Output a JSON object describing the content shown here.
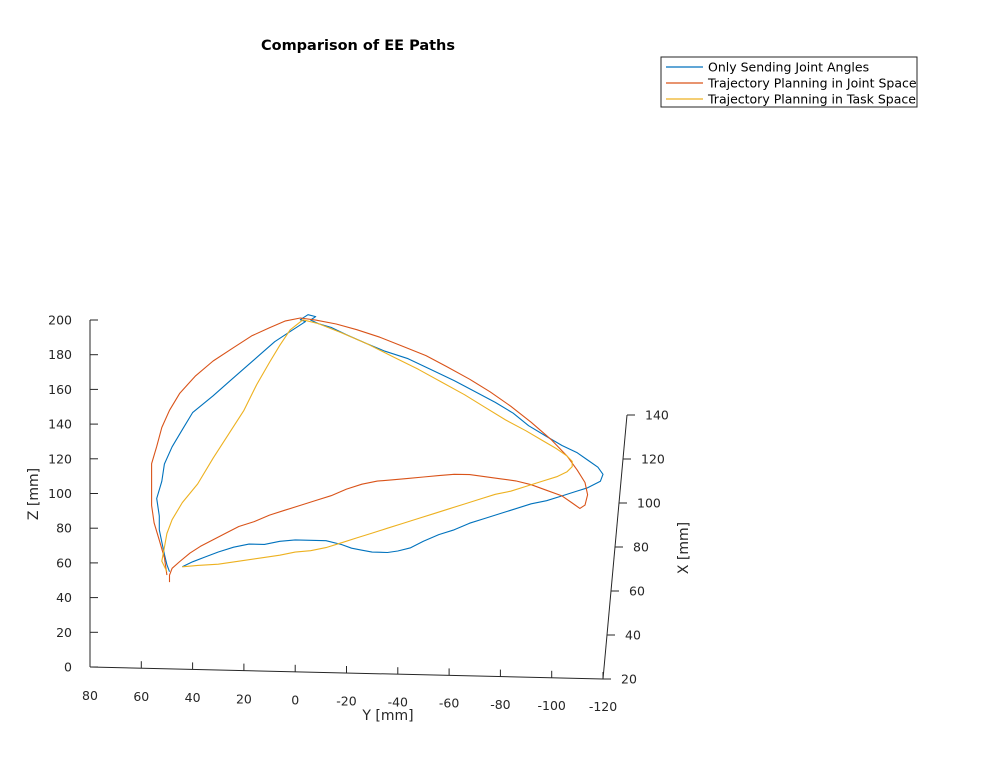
{
  "chart_data": {
    "type": "line3d",
    "title": "Comparison of EE Paths",
    "xlabel": "X [mm]",
    "ylabel": "Y [mm]",
    "zlabel": "Z [mm]",
    "xticks": [
      "20",
      "40",
      "60",
      "80",
      "100",
      "120",
      "140"
    ],
    "yticks": [
      "80",
      "60",
      "40",
      "20",
      "0",
      "-20",
      "-40",
      "-60",
      "-80",
      "-100",
      "-120"
    ],
    "zticks": [
      "0",
      "20",
      "40",
      "60",
      "80",
      "100",
      "120",
      "140",
      "160",
      "180",
      "200"
    ],
    "ylim": [
      80,
      -120
    ],
    "zlim": [
      0,
      200
    ],
    "xlim": [
      20,
      140
    ],
    "legend_position": "top-right",
    "series": [
      {
        "name": "Only Sending Joint Angles",
        "color": "#0072bd",
        "path": [
          [
            44,
            59
          ],
          [
            40,
            62
          ],
          [
            35,
            65
          ],
          [
            30,
            68
          ],
          [
            24,
            71
          ],
          [
            18,
            73
          ],
          [
            12,
            73
          ],
          [
            6,
            75
          ],
          [
            0,
            76
          ],
          [
            -6,
            76
          ],
          [
            -12,
            76
          ],
          [
            -18,
            74
          ],
          [
            -22,
            72
          ],
          [
            -26,
            71
          ],
          [
            -30,
            70
          ],
          [
            -36,
            70
          ],
          [
            -40,
            71
          ],
          [
            -45,
            73
          ],
          [
            -50,
            77
          ],
          [
            -56,
            81
          ],
          [
            -62,
            84
          ],
          [
            -68,
            88
          ],
          [
            -74,
            91
          ],
          [
            -80,
            94
          ],
          [
            -86,
            97
          ],
          [
            -92,
            100
          ],
          [
            -98,
            102
          ],
          [
            -104,
            105
          ],
          [
            -110,
            108
          ],
          [
            -114,
            110
          ],
          [
            -119,
            114
          ],
          [
            -120,
            118
          ],
          [
            -118,
            122
          ],
          [
            -114,
            126
          ],
          [
            -110,
            130
          ],
          [
            -104,
            134
          ],
          [
            -98,
            139
          ],
          [
            -91,
            145
          ],
          [
            -85,
            152
          ],
          [
            -78,
            158
          ],
          [
            -70,
            164
          ],
          [
            -62,
            170
          ],
          [
            -53,
            176
          ],
          [
            -44,
            182
          ],
          [
            -35,
            186
          ],
          [
            -28,
            190
          ],
          [
            -20,
            195
          ],
          [
            -14,
            199
          ],
          [
            -9,
            201
          ],
          [
            -6,
            203
          ],
          [
            -8,
            205
          ],
          [
            -5,
            206
          ],
          [
            -2,
            203
          ],
          [
            -4,
            202
          ],
          [
            2,
            196
          ],
          [
            8,
            190
          ],
          [
            14,
            182
          ],
          [
            20,
            174
          ],
          [
            26,
            166
          ],
          [
            32,
            158
          ],
          [
            40,
            148
          ],
          [
            44,
            138
          ],
          [
            48,
            128
          ],
          [
            51,
            118
          ],
          [
            52,
            108
          ],
          [
            54,
            98
          ],
          [
            53,
            88
          ],
          [
            53,
            80
          ],
          [
            52,
            73
          ],
          [
            51,
            66
          ],
          [
            50,
            60
          ],
          [
            49,
            56
          ]
        ]
      },
      {
        "name": "Trajectory Planning in Joint Space",
        "color": "#d95319",
        "path": [
          [
            49,
            50
          ],
          [
            49,
            54
          ],
          [
            48,
            58
          ],
          [
            45,
            62
          ],
          [
            41,
            67
          ],
          [
            37,
            71
          ],
          [
            32,
            75
          ],
          [
            27,
            79
          ],
          [
            22,
            83
          ],
          [
            16,
            86
          ],
          [
            10,
            90
          ],
          [
            4,
            93
          ],
          [
            -2,
            96
          ],
          [
            -8,
            99
          ],
          [
            -14,
            102
          ],
          [
            -20,
            106
          ],
          [
            -26,
            109
          ],
          [
            -32,
            111
          ],
          [
            -38,
            112
          ],
          [
            -44,
            113
          ],
          [
            -50,
            114
          ],
          [
            -56,
            115
          ],
          [
            -62,
            116
          ],
          [
            -68,
            116
          ],
          [
            -74,
            115
          ],
          [
            -80,
            114
          ],
          [
            -86,
            113
          ],
          [
            -92,
            111
          ],
          [
            -98,
            108
          ],
          [
            -104,
            105
          ],
          [
            -108,
            101
          ],
          [
            -111,
            98
          ],
          [
            -113,
            100
          ],
          [
            -114,
            106
          ],
          [
            -113,
            113
          ],
          [
            -110,
            120
          ],
          [
            -106,
            128
          ],
          [
            -100,
            137
          ],
          [
            -92,
            147
          ],
          [
            -84,
            156
          ],
          [
            -76,
            164
          ],
          [
            -68,
            171
          ],
          [
            -59,
            178
          ],
          [
            -51,
            184
          ],
          [
            -42,
            189
          ],
          [
            -33,
            194
          ],
          [
            -24,
            198
          ],
          [
            -16,
            201
          ],
          [
            -8,
            203
          ],
          [
            -2,
            204
          ],
          [
            4,
            202
          ],
          [
            10,
            198
          ],
          [
            17,
            193
          ],
          [
            24,
            186
          ],
          [
            32,
            178
          ],
          [
            39,
            169
          ],
          [
            45,
            159
          ],
          [
            49,
            149
          ],
          [
            52,
            139
          ],
          [
            54,
            128
          ],
          [
            56,
            118
          ],
          [
            56,
            106
          ],
          [
            56,
            94
          ],
          [
            55,
            84
          ],
          [
            53,
            74
          ],
          [
            51,
            64
          ],
          [
            50,
            54
          ]
        ]
      },
      {
        "name": "Trajectory Planning in Task Space",
        "color": "#edb120",
        "path": [
          [
            44,
            59
          ],
          [
            38,
            60
          ],
          [
            30,
            61
          ],
          [
            22,
            63
          ],
          [
            14,
            65
          ],
          [
            6,
            67
          ],
          [
            0,
            69
          ],
          [
            -6,
            70
          ],
          [
            -12,
            72
          ],
          [
            -18,
            75
          ],
          [
            -24,
            78
          ],
          [
            -30,
            81
          ],
          [
            -36,
            84
          ],
          [
            -42,
            87
          ],
          [
            -48,
            90
          ],
          [
            -54,
            93
          ],
          [
            -60,
            96
          ],
          [
            -66,
            99
          ],
          [
            -72,
            102
          ],
          [
            -78,
            105
          ],
          [
            -84,
            107
          ],
          [
            -90,
            110
          ],
          [
            -96,
            113
          ],
          [
            -102,
            116
          ],
          [
            -106,
            119
          ],
          [
            -108,
            122
          ],
          [
            -108,
            125
          ],
          [
            -106,
            128
          ],
          [
            -102,
            132
          ],
          [
            -96,
            137
          ],
          [
            -90,
            142
          ],
          [
            -82,
            148
          ],
          [
            -74,
            155
          ],
          [
            -66,
            162
          ],
          [
            -57,
            169
          ],
          [
            -48,
            176
          ],
          [
            -38,
            183
          ],
          [
            -28,
            190
          ],
          [
            -18,
            196
          ],
          [
            -9,
            201
          ],
          [
            -3,
            203
          ],
          [
            2,
            197
          ],
          [
            6,
            188
          ],
          [
            10,
            178
          ],
          [
            15,
            165
          ],
          [
            20,
            150
          ],
          [
            26,
            136
          ],
          [
            32,
            122
          ],
          [
            38,
            107
          ],
          [
            44,
            96
          ],
          [
            48,
            86
          ],
          [
            50,
            78
          ],
          [
            51,
            70
          ],
          [
            52,
            62
          ],
          [
            50,
            56
          ]
        ]
      }
    ]
  }
}
